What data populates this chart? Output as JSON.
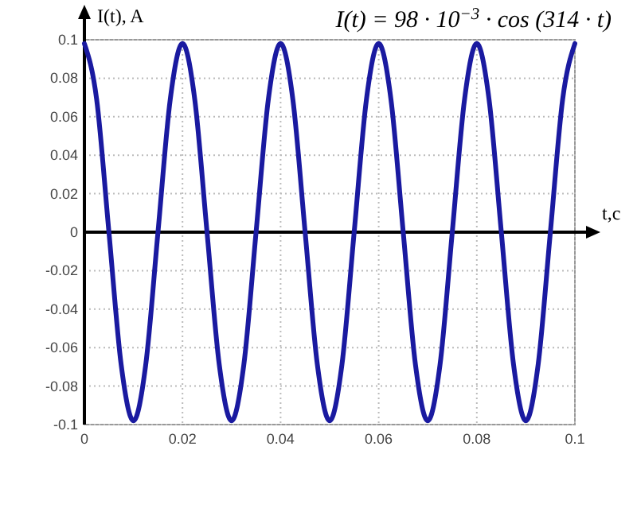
{
  "chart_data": {
    "type": "line",
    "title": "I(t) = 98 · 10$^{−3}$ · cos (314 · t)",
    "xlabel": "t,c",
    "ylabel": "I(t), A",
    "xlim": [
      0,
      0.1
    ],
    "xticks": [
      0,
      0.02,
      0.04,
      0.06,
      0.08,
      0.1
    ],
    "ylim": [
      -0.1,
      0.1
    ],
    "yticks": [
      -0.1,
      -0.08,
      -0.06,
      -0.04,
      -0.02,
      0,
      0.02,
      0.04,
      0.06,
      0.08,
      0.1
    ],
    "grid": true,
    "marker": "none",
    "line_style": "solid",
    "series": [
      {
        "color": "#1a1aa0",
        "x": [
          0,
          0.0025,
          0.005,
          0.0075,
          0.01,
          0.0125,
          0.015,
          0.0175,
          0.02,
          0.0225,
          0.025,
          0.0275,
          0.03,
          0.0325,
          0.035,
          0.0375,
          0.04,
          0.0425,
          0.045,
          0.0475,
          0.05,
          0.0525,
          0.055,
          0.0575,
          0.06,
          0.0625,
          0.065,
          0.0675,
          0.07,
          0.0725,
          0.075,
          0.0775,
          0.08,
          0.0825,
          0.085,
          0.0875,
          0.09,
          0.0925,
          0.095,
          0.0975,
          0.1
        ],
        "values": [
          0.098,
          0.069,
          0,
          -0.069,
          -0.098,
          -0.069,
          0,
          0.069,
          0.098,
          0.069,
          0,
          -0.069,
          -0.098,
          -0.069,
          0,
          0.069,
          0.098,
          0.069,
          0,
          -0.069,
          -0.098,
          -0.069,
          0,
          0.069,
          0.098,
          0.069,
          0,
          -0.069,
          -0.098,
          -0.069,
          0,
          0.069,
          0.098,
          0.069,
          0,
          -0.069,
          -0.098,
          -0.069,
          0,
          0.069,
          0.098
        ]
      }
    ]
  }
}
